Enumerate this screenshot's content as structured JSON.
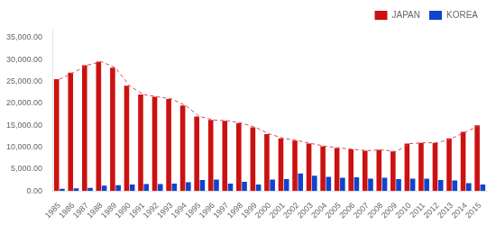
{
  "chart_data": {
    "type": "bar",
    "categories": [
      "1985",
      "1986",
      "1987",
      "1988",
      "1989",
      "1990",
      "1991",
      "1992",
      "1993",
      "1994",
      "1995",
      "1996",
      "1997",
      "1998",
      "1999",
      "2000",
      "2001",
      "2002",
      "2003",
      "2004",
      "2005",
      "2006",
      "2007",
      "2008",
      "2009",
      "2010",
      "2011",
      "2012",
      "2013",
      "2014",
      "2015"
    ],
    "series": [
      {
        "name": "JAPAN",
        "color": "#cc1111",
        "values": [
          25500,
          27000,
          28700,
          29500,
          28100,
          24000,
          22000,
          21500,
          21000,
          19500,
          17000,
          16200,
          16000,
          15500,
          14500,
          13000,
          12000,
          11500,
          10800,
          10200,
          9800,
          9500,
          9200,
          9400,
          9000,
          10800,
          11000,
          11000,
          12000,
          13500,
          15000
        ]
      },
      {
        "name": "KOREA",
        "color": "#1144cc",
        "values": [
          500,
          600,
          700,
          1200,
          1300,
          1500,
          1600,
          1600,
          1700,
          2000,
          2500,
          2600,
          1700,
          2100,
          1500,
          2600,
          2700,
          4000,
          3500,
          3200,
          3000,
          3100,
          2800,
          3000,
          2700,
          2800,
          2800,
          2500,
          2400,
          1800,
          1500
        ]
      },
      {
        "type": "line",
        "color": "#dd4455",
        "line_style": "dashed",
        "values": [
          25500,
          27000,
          28700,
          29500,
          28100,
          24000,
          22000,
          21500,
          21000,
          19500,
          17000,
          16200,
          16000,
          15500,
          14500,
          13000,
          12000,
          11500,
          10800,
          10200,
          9800,
          9500,
          9200,
          9400,
          9000,
          10800,
          11000,
          11000,
          12000,
          13500,
          15000
        ]
      }
    ],
    "ylim": [
      0,
      37000
    ],
    "yticks": [
      {
        "value": 0,
        "label": "0.00"
      },
      {
        "value": 5000,
        "label": "5,000.00"
      },
      {
        "value": 10000,
        "label": "10,000.00"
      },
      {
        "value": 15000,
        "label": "15,000.00"
      },
      {
        "value": 20000,
        "label": "20,000.00"
      },
      {
        "value": 25000,
        "label": "25,000.00"
      },
      {
        "value": 30000,
        "label": "30,000.00"
      },
      {
        "value": 35000,
        "label": "35,000.00"
      }
    ],
    "grid": false,
    "legend": "upper right"
  }
}
